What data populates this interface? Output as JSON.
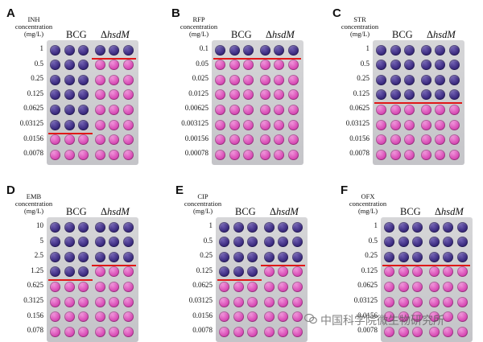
{
  "watermark": {
    "text": "中国科学院微生物研究所"
  },
  "colors": {
    "blue_well": "#3a2a7e",
    "pink_well": "#d74ab4",
    "cutoff_line": "#e01818"
  },
  "panels": [
    {
      "label": "A",
      "antibiotic": "INH\nconcentration\n(mg/L)",
      "strain_wt": "BCG",
      "strain_mut_prefix": "Δ",
      "strain_mut_gene": "hsdM",
      "concentrations": [
        "1",
        "0.5",
        "0.25",
        "0.125",
        "0.0625",
        "0.03125",
        "0.0156",
        "0.0078"
      ],
      "mic_wt_row": 6,
      "mic_mut_row": 1
    },
    {
      "label": "B",
      "antibiotic": "RFP\nconcentration\n(mg/L)",
      "strain_wt": "BCG",
      "strain_mut_prefix": "Δ",
      "strain_mut_gene": "hsdM",
      "concentrations": [
        "0.1",
        "0.05",
        "0.025",
        "0.0125",
        "0.00625",
        "0.003125",
        "0.00156",
        "0.00078"
      ],
      "mic_wt_row": 1,
      "mic_mut_row": 1
    },
    {
      "label": "C",
      "antibiotic": "STR\nconcentration\n(mg/L)",
      "strain_wt": "BCG",
      "strain_mut_prefix": "Δ",
      "strain_mut_gene": "hsdM",
      "concentrations": [
        "1",
        "0.5",
        "0.25",
        "0.125",
        "0.0625",
        "0.03125",
        "0.0156",
        "0.0078"
      ],
      "mic_wt_row": 4,
      "mic_mut_row": 4
    },
    {
      "label": "D",
      "antibiotic": "EMB\nconcentration\n(mg/L)",
      "strain_wt": "BCG",
      "strain_mut_prefix": "Δ",
      "strain_mut_gene": "hsdM",
      "concentrations": [
        "10",
        "5",
        "2.5",
        "1.25",
        "0.625",
        "0.3125",
        "0.156",
        "0.078"
      ],
      "mic_wt_row": 4,
      "mic_mut_row": 3
    },
    {
      "label": "E",
      "antibiotic": "CIP\nconcentration\n(mg/L)",
      "strain_wt": "BCG",
      "strain_mut_prefix": "Δ",
      "strain_mut_gene": "hsdM",
      "concentrations": [
        "1",
        "0.5",
        "0.25",
        "0.125",
        "0.0625",
        "0.03125",
        "0.0156",
        "0.0078"
      ],
      "mic_wt_row": 4,
      "mic_mut_row": 3
    },
    {
      "label": "F",
      "antibiotic": "OFX\nconcentration\n(mg/L)",
      "strain_wt": "BCG",
      "strain_mut_prefix": "Δ",
      "strain_mut_gene": "hsdM",
      "concentrations": [
        "1",
        "0.5",
        "0.25",
        "0.125",
        "0.0625",
        "0.03125",
        "0.0156",
        "0.0078"
      ],
      "mic_wt_row": 3,
      "mic_mut_row": 3
    }
  ]
}
